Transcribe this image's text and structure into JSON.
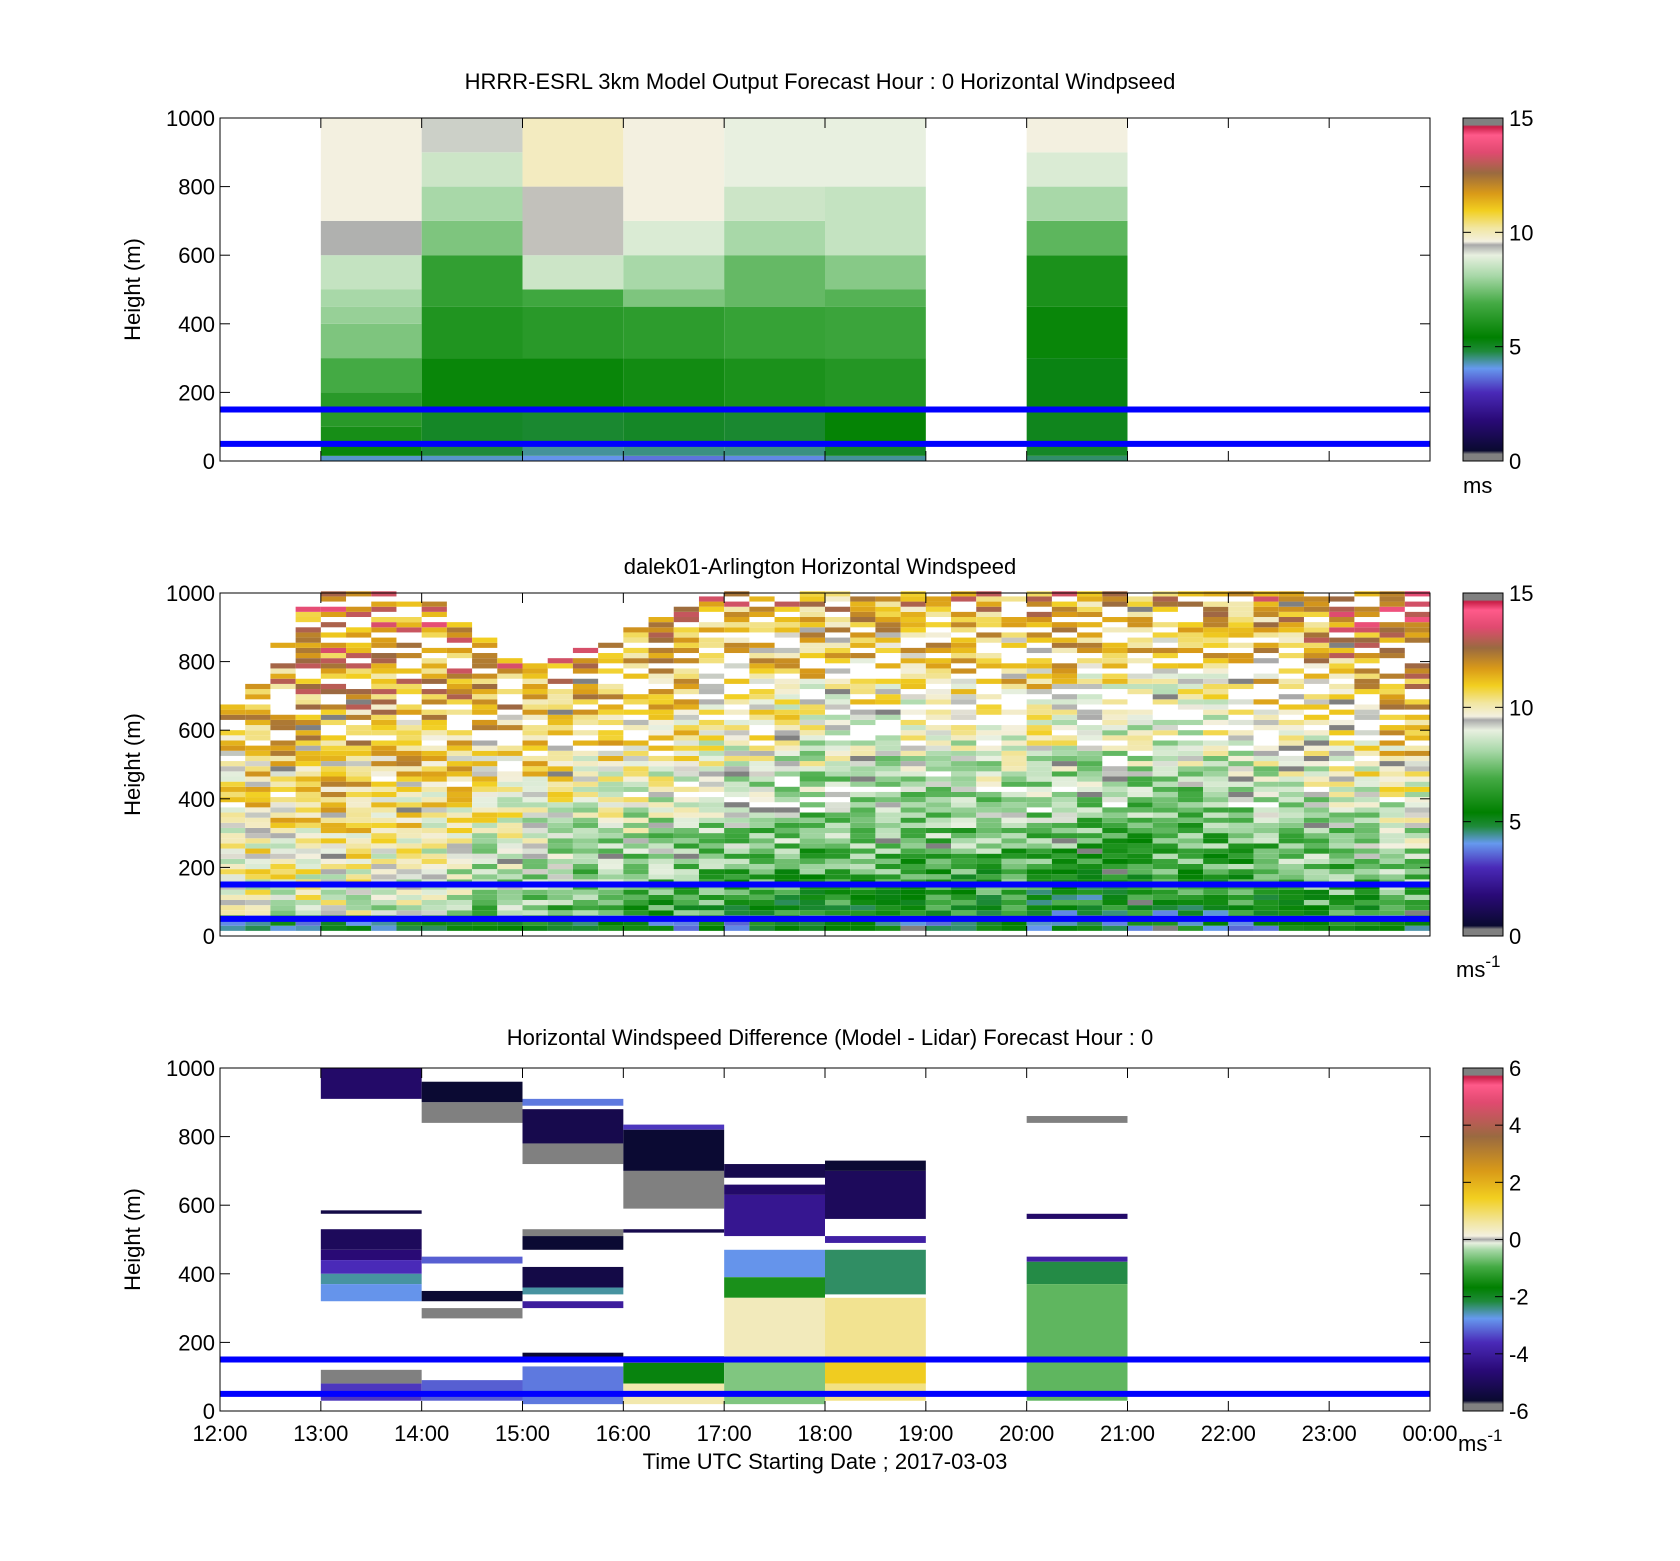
{
  "figure": {
    "background": "#ffffff"
  },
  "colorbars": {
    "speed": {
      "ticks": [
        0,
        5,
        10,
        15
      ],
      "range": [
        0,
        15
      ],
      "stops": [
        [
          0.0,
          "#808080"
        ],
        [
          0.02,
          "#808080"
        ],
        [
          0.03,
          "#0a0a30"
        ],
        [
          0.12,
          "#2a0a78"
        ],
        [
          0.2,
          "#4a2ab8"
        ],
        [
          0.27,
          "#6699ee"
        ],
        [
          0.32,
          "#1f8a3a"
        ],
        [
          0.36,
          "#008000"
        ],
        [
          0.46,
          "#44aa44"
        ],
        [
          0.54,
          "#a8d8a8"
        ],
        [
          0.6,
          "#e8f0e0"
        ],
        [
          0.63,
          "#a9a9a9"
        ],
        [
          0.64,
          "#f3f0e0"
        ],
        [
          0.68,
          "#f2e6a0"
        ],
        [
          0.73,
          "#f2cf20"
        ],
        [
          0.78,
          "#d99a18"
        ],
        [
          0.84,
          "#9a6a40"
        ],
        [
          0.9,
          "#e04a70"
        ],
        [
          0.95,
          "#ff5a8a"
        ],
        [
          0.975,
          "#c81e46"
        ],
        [
          0.98,
          "#808080"
        ],
        [
          1.0,
          "#808080"
        ]
      ]
    },
    "diff": {
      "ticks": [
        -6,
        -4,
        -2,
        0,
        2,
        4,
        6
      ],
      "range": [
        -6,
        6
      ],
      "stops": [
        [
          0.0,
          "#808080"
        ],
        [
          0.02,
          "#808080"
        ],
        [
          0.03,
          "#0a0a30"
        ],
        [
          0.12,
          "#2a0a78"
        ],
        [
          0.2,
          "#4a2ab8"
        ],
        [
          0.27,
          "#6699ee"
        ],
        [
          0.32,
          "#1f8a3a"
        ],
        [
          0.36,
          "#008000"
        ],
        [
          0.42,
          "#44aa44"
        ],
        [
          0.47,
          "#a8d8a8"
        ],
        [
          0.49,
          "#e8f0e0"
        ],
        [
          0.5,
          "#a9a9a9"
        ],
        [
          0.51,
          "#f3f0e0"
        ],
        [
          0.55,
          "#f2e6a0"
        ],
        [
          0.62,
          "#f2cf20"
        ],
        [
          0.7,
          "#d99a18"
        ],
        [
          0.8,
          "#9a6a40"
        ],
        [
          0.9,
          "#e04a70"
        ],
        [
          0.95,
          "#ff5a8a"
        ],
        [
          0.975,
          "#c81e46"
        ],
        [
          0.98,
          "#808080"
        ],
        [
          1.0,
          "#808080"
        ]
      ]
    }
  },
  "chart_data": [
    {
      "type": "heatmap",
      "title": "HRRR-ESRL 3km Model Output   Forecast Hour : 0 Horizontal Windpseed",
      "ylabel": "Height (m)",
      "xlabel": "",
      "ylim": [
        0,
        1000
      ],
      "yticks": [
        "0",
        "200",
        "400",
        "600",
        "800",
        "1000"
      ],
      "xticks": [
        "",
        "",
        "",
        "",
        "",
        "",
        "",
        "",
        "",
        "",
        "",
        "",
        ""
      ],
      "xtick_hours": [
        12,
        13,
        14,
        15,
        16,
        17,
        18,
        19,
        20,
        21,
        22,
        23,
        24
      ],
      "xlim_hours": [
        12,
        24
      ],
      "colorbar": "speed",
      "colorbar_unit": "ms",
      "colorbar_unit_sup": "",
      "reference_lines_m": [
        150,
        50
      ],
      "reference_line_color": "#0000ff",
      "grid": false,
      "columns": [
        {
          "start": 13,
          "end": 14,
          "profile": [
            [
              0,
              15,
              4.2
            ],
            [
              15,
              50,
              5.6
            ],
            [
              50,
              100,
              5.9
            ],
            [
              100,
              200,
              6.3
            ],
            [
              200,
              300,
              6.9
            ],
            [
              300,
              400,
              7.6
            ],
            [
              400,
              450,
              7.9
            ],
            [
              450,
              500,
              8.1
            ],
            [
              500,
              600,
              8.5
            ],
            [
              600,
              700,
              9.4
            ],
            [
              700,
              1000,
              9.6
            ]
          ]
        },
        {
          "start": 14,
          "end": 15,
          "profile": [
            [
              0,
              15,
              4.2
            ],
            [
              15,
              50,
              4.8
            ],
            [
              50,
              150,
              5.0
            ],
            [
              150,
              300,
              5.6
            ],
            [
              300,
              450,
              6.1
            ],
            [
              450,
              600,
              6.5
            ],
            [
              600,
              700,
              7.6
            ],
            [
              700,
              800,
              8.1
            ],
            [
              800,
              900,
              8.6
            ],
            [
              900,
              1000,
              9.2
            ]
          ]
        },
        {
          "start": 15,
          "end": 16,
          "profile": [
            [
              0,
              15,
              4.0
            ],
            [
              15,
              50,
              4.4
            ],
            [
              50,
              150,
              4.9
            ],
            [
              150,
              300,
              5.6
            ],
            [
              300,
              450,
              6.3
            ],
            [
              450,
              500,
              6.8
            ],
            [
              500,
              600,
              8.6
            ],
            [
              600,
              800,
              9.5
            ],
            [
              800,
              1000,
              9.9
            ]
          ]
        },
        {
          "start": 16,
          "end": 17,
          "profile": [
            [
              0,
              15,
              3.7
            ],
            [
              15,
              50,
              4.5
            ],
            [
              50,
              150,
              5.0
            ],
            [
              150,
              300,
              5.8
            ],
            [
              300,
              450,
              6.4
            ],
            [
              450,
              500,
              7.6
            ],
            [
              500,
              600,
              8.1
            ],
            [
              600,
              700,
              8.8
            ],
            [
              700,
              1000,
              9.6
            ]
          ]
        },
        {
          "start": 17,
          "end": 18,
          "profile": [
            [
              0,
              15,
              3.9
            ],
            [
              15,
              50,
              4.5
            ],
            [
              50,
              150,
              4.9
            ],
            [
              150,
              300,
              6.0
            ],
            [
              300,
              450,
              6.6
            ],
            [
              450,
              600,
              7.3
            ],
            [
              600,
              700,
              8.1
            ],
            [
              700,
              800,
              8.6
            ],
            [
              800,
              1000,
              9.0
            ]
          ]
        },
        {
          "start": 18,
          "end": 19,
          "profile": [
            [
              0,
              15,
              4.4
            ],
            [
              15,
              50,
              5.0
            ],
            [
              50,
              150,
              5.5
            ],
            [
              150,
              300,
              6.2
            ],
            [
              300,
              450,
              6.7
            ],
            [
              450,
              500,
              7.1
            ],
            [
              500,
              600,
              7.7
            ],
            [
              600,
              800,
              8.5
            ],
            [
              800,
              1000,
              9.0
            ]
          ]
        },
        {
          "start": 20,
          "end": 21,
          "profile": [
            [
              0,
              15,
              4.6
            ],
            [
              15,
              50,
              5.0
            ],
            [
              50,
              150,
              5.1
            ],
            [
              150,
              300,
              5.2
            ],
            [
              300,
              450,
              5.6
            ],
            [
              450,
              600,
              6.0
            ],
            [
              600,
              700,
              7.2
            ],
            [
              700,
              800,
              8.1
            ],
            [
              800,
              900,
              8.8
            ],
            [
              900,
              1000,
              9.6
            ]
          ]
        }
      ]
    },
    {
      "type": "heatmap",
      "title": "dalek01-Arlington  Horizontal Windspeed",
      "ylabel": "Height (m)",
      "xlabel": "",
      "ylim": [
        0,
        1000
      ],
      "yticks": [
        "0",
        "200",
        "400",
        "600",
        "800",
        "1000"
      ],
      "xticks": [
        "",
        "",
        "",
        "",
        "",
        "",
        "",
        "",
        "",
        "",
        "",
        "",
        ""
      ],
      "xtick_hours": [
        12,
        13,
        14,
        15,
        16,
        17,
        18,
        19,
        20,
        21,
        22,
        23,
        24
      ],
      "xlim_hours": [
        12,
        24
      ],
      "colorbar": "speed",
      "colorbar_unit": "ms",
      "colorbar_unit_sup": "-1",
      "reference_lines_m": [
        150,
        50
      ],
      "reference_line_color": "#0000ff",
      "grid": false,
      "lidar_field": {
        "dt_hours": 0.25,
        "dz_m": 15,
        "trend_hours": [
          12,
          13,
          14,
          15,
          16,
          17,
          18,
          19,
          20,
          21,
          22,
          23,
          24
        ],
        "trend_max_height_m": [
          620,
          1000,
          1000,
          780,
          870,
          1000,
          1000,
          1000,
          1000,
          1000,
          1000,
          1000,
          1000
        ],
        "trend_speed_low": [
          8.5,
          8.8,
          8.2,
          6.5,
          6.2,
          5.5,
          5.0,
          5.2,
          4.8,
          4.4,
          5.0,
          5.5,
          6.0
        ],
        "trend_speed_high": [
          12.0,
          12.5,
          12.5,
          13.0,
          12.5,
          12.0,
          11.5,
          11.5,
          12.0,
          11.5,
          11.5,
          12.5,
          13.5
        ]
      }
    },
    {
      "type": "heatmap",
      "title": "Horizontal Windspeed Difference (Model - Lidar) Forecast Hour : 0",
      "ylabel": "Height (m)",
      "xlabel": "Time UTC  Starting Date ; 2017-03-03",
      "ylim": [
        0,
        1000
      ],
      "yticks": [
        "0",
        "200",
        "400",
        "600",
        "800",
        "1000"
      ],
      "xticks": [
        "12:00",
        "13:00",
        "14:00",
        "15:00",
        "16:00",
        "17:00",
        "18:00",
        "19:00",
        "20:00",
        "21:00",
        "22:00",
        "23:00",
        "00:00"
      ],
      "xtick_hours": [
        12,
        13,
        14,
        15,
        16,
        17,
        18,
        19,
        20,
        21,
        22,
        23,
        24
      ],
      "xlim_hours": [
        12,
        24
      ],
      "colorbar": "diff",
      "colorbar_unit": "ms",
      "colorbar_unit_sup": "-1",
      "reference_lines_m": [
        150,
        50
      ],
      "reference_line_color": "#0000ff",
      "grid": false,
      "bands": [
        {
          "start": 13,
          "end": 14,
          "segments": [
            [
              910,
              1000,
              -4.8
            ],
            [
              575,
              585,
              -5.3
            ],
            [
              470,
              530,
              -5.0
            ],
            [
              440,
              470,
              -4.6
            ],
            [
              400,
              440,
              -3.6
            ],
            [
              370,
              400,
              -2.5
            ],
            [
              320,
              370,
              -2.8
            ],
            [
              80,
              120,
              -6.2
            ],
            [
              30,
              80,
              -3.5
            ]
          ]
        },
        {
          "start": 14,
          "end": 15,
          "segments": [
            [
              900,
              960,
              -5.6
            ],
            [
              840,
              900,
              -6.2
            ],
            [
              430,
              450,
              -3.2
            ],
            [
              320,
              350,
              -5.6
            ],
            [
              270,
              300,
              -6.2
            ],
            [
              30,
              90,
              -3.2
            ]
          ]
        },
        {
          "start": 15,
          "end": 16,
          "segments": [
            [
              890,
              910,
              -3.0
            ],
            [
              780,
              880,
              -5.2
            ],
            [
              720,
              780,
              -6.2
            ],
            [
              510,
              530,
              -6.2
            ],
            [
              470,
              510,
              -5.6
            ],
            [
              360,
              420,
              -5.3
            ],
            [
              340,
              360,
              -2.5
            ],
            [
              300,
              320,
              -4.0
            ],
            [
              150,
              170,
              -5.6
            ],
            [
              20,
              130,
              -3.0
            ]
          ]
        },
        {
          "start": 16,
          "end": 17,
          "segments": [
            [
              820,
              835,
              -3.5
            ],
            [
              700,
              820,
              -5.6
            ],
            [
              590,
              700,
              -5.8
            ],
            [
              520,
              530,
              -5.2
            ],
            [
              140,
              160,
              -6.2
            ],
            [
              80,
              140,
              -1.8
            ],
            [
              20,
              80,
              0.5
            ]
          ]
        },
        {
          "start": 17,
          "end": 18,
          "segments": [
            [
              680,
              720,
              -5.2
            ],
            [
              630,
              660,
              -4.8
            ],
            [
              510,
              630,
              -4.2
            ],
            [
              390,
              470,
              -2.8
            ],
            [
              330,
              390,
              -1.4
            ],
            [
              150,
              330,
              0.4
            ],
            [
              20,
              150,
              -0.6
            ]
          ]
        },
        {
          "start": 18,
          "end": 19,
          "segments": [
            [
              700,
              730,
              -5.6
            ],
            [
              560,
              700,
              -5.0
            ],
            [
              490,
              510,
              -3.9
            ],
            [
              340,
              470,
              -2.3
            ],
            [
              150,
              330,
              0.7
            ],
            [
              80,
              150,
              1.5
            ],
            [
              30,
              80,
              0.8
            ]
          ]
        },
        {
          "start": 20,
          "end": 21,
          "segments": [
            [
              840,
              860,
              -5.8
            ],
            [
              560,
              575,
              -4.8
            ],
            [
              435,
              450,
              -3.9
            ],
            [
              370,
              435,
              -2.2
            ],
            [
              30,
              370,
              -0.8
            ]
          ]
        }
      ]
    }
  ]
}
